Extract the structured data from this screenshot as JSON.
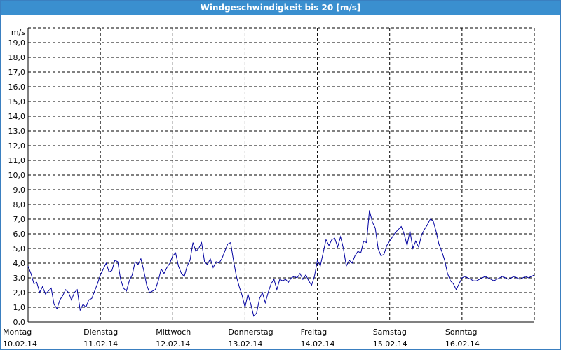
{
  "window": {
    "title": "Windgeschwindigkeit bis 20 [m/s]"
  },
  "colors": {
    "title_bar": "#3a8fcf",
    "series_line": "#0000a0",
    "grid": "#000000"
  },
  "chart_data": {
    "type": "line",
    "title": "Windgeschwindigkeit bis 20 [m/s]",
    "ylabel": "m/s",
    "xlabel": "",
    "ylim": [
      0,
      20
    ],
    "yticks": [
      "0,0",
      "1,0",
      "2,0",
      "3,0",
      "4,0",
      "5,0",
      "6,0",
      "7,0",
      "8,0",
      "9,0",
      "10,0",
      "11,0",
      "12,0",
      "13,0",
      "14,0",
      "15,0",
      "16,0",
      "17,0",
      "18,0",
      "19,0"
    ],
    "x_range_days": [
      0,
      7
    ],
    "day_ticks": [
      {
        "day": "Montag",
        "date": "10.02.14"
      },
      {
        "day": "Dienstag",
        "date": "11.02.14"
      },
      {
        "day": "Mittwoch",
        "date": "12.02.14"
      },
      {
        "day": "Donnerstag",
        "date": "13.02.14"
      },
      {
        "day": "Freitag",
        "date": "14.02.14"
      },
      {
        "day": "Samstag",
        "date": "15.02.14"
      },
      {
        "day": "Sonntag",
        "date": "16.02.14"
      }
    ],
    "grid": true,
    "series": [
      {
        "x": [
          0.0,
          0.04,
          0.08,
          0.12,
          0.16,
          0.2,
          0.24,
          0.28,
          0.32,
          0.36,
          0.4,
          0.44,
          0.48,
          0.52,
          0.56,
          0.6,
          0.64,
          0.68,
          0.72,
          0.76,
          0.8,
          0.84,
          0.88,
          0.92,
          0.96,
          1.0,
          1.04,
          1.08,
          1.12,
          1.16,
          1.2,
          1.24,
          1.28,
          1.32,
          1.36,
          1.4,
          1.44,
          1.48,
          1.52,
          1.56,
          1.6,
          1.64,
          1.68,
          1.72,
          1.76,
          1.8,
          1.84,
          1.88,
          1.92,
          1.96,
          2.0,
          2.04,
          2.08,
          2.12,
          2.16,
          2.2,
          2.24,
          2.28,
          2.32,
          2.36,
          2.4,
          2.44,
          2.48,
          2.52,
          2.56,
          2.6,
          2.64,
          2.68,
          2.72,
          2.76,
          2.8,
          2.84,
          2.88,
          2.92,
          2.96,
          3.0,
          3.04,
          3.08,
          3.12,
          3.16,
          3.2,
          3.24,
          3.28,
          3.32,
          3.36,
          3.4,
          3.44,
          3.48,
          3.52,
          3.56,
          3.6,
          3.64,
          3.68,
          3.72,
          3.76,
          3.8,
          3.84,
          3.88,
          3.92,
          3.96,
          4.0,
          4.04,
          4.08,
          4.12,
          4.16,
          4.2,
          4.24,
          4.28,
          4.32,
          4.36,
          4.4,
          4.44,
          4.48,
          4.52,
          4.56,
          4.6,
          4.64,
          4.68,
          4.72,
          4.76,
          4.8,
          4.84,
          4.88,
          4.92,
          4.96,
          5.0,
          5.04,
          5.08,
          5.12,
          5.16,
          5.2,
          5.24,
          5.28,
          5.32,
          5.36,
          5.4,
          5.44,
          5.48,
          5.52,
          5.56,
          5.6,
          5.64,
          5.68,
          5.72,
          5.76,
          5.8,
          5.84,
          5.88,
          5.92,
          5.96,
          6.0,
          6.04,
          6.08,
          6.12,
          6.16,
          6.2,
          6.24,
          6.28,
          6.32,
          6.36,
          6.4,
          6.44,
          6.48,
          6.52,
          6.56,
          6.6,
          6.64,
          6.68,
          6.72,
          6.76,
          6.8,
          6.84,
          6.88,
          6.92,
          6.96,
          7.0
        ],
        "values": [
          3.8,
          3.3,
          2.6,
          2.7,
          2.0,
          2.4,
          1.9,
          2.1,
          2.3,
          1.2,
          0.9,
          1.5,
          1.8,
          2.2,
          2.0,
          1.5,
          2.0,
          2.2,
          0.8,
          1.2,
          1.0,
          1.5,
          1.6,
          2.1,
          2.6,
          3.2,
          3.6,
          4.0,
          3.4,
          3.5,
          4.2,
          4.1,
          2.9,
          2.3,
          2.1,
          2.8,
          3.2,
          4.1,
          3.9,
          4.3,
          3.5,
          2.5,
          2.0,
          2.1,
          2.2,
          2.8,
          3.6,
          3.3,
          3.7,
          4.0,
          4.5,
          4.7,
          3.8,
          3.3,
          3.1,
          3.8,
          4.2,
          5.4,
          4.8,
          5.0,
          5.4,
          4.1,
          3.9,
          4.3,
          3.7,
          4.1,
          4.0,
          4.3,
          4.8,
          5.3,
          5.4,
          4.2,
          3.1,
          2.4,
          1.8,
          1.0,
          1.9,
          1.2,
          0.4,
          0.6,
          1.6,
          2.0,
          1.3,
          2.0,
          2.6,
          2.9,
          2.2,
          2.9,
          2.8,
          2.9,
          2.7,
          3.0,
          3.1,
          3.0,
          3.3,
          2.9,
          3.2,
          2.8,
          2.5,
          3.1,
          4.2,
          3.8,
          4.7,
          5.6,
          5.2,
          5.6,
          5.7,
          5.1,
          5.8,
          5.0,
          3.8,
          4.2,
          4.0,
          4.5,
          4.8,
          4.7,
          5.5,
          5.4,
          7.6,
          6.8,
          6.4,
          5.0,
          4.5,
          4.6,
          5.2,
          5.5,
          5.8,
          6.1,
          6.3,
          6.5,
          6.0,
          5.2,
          6.2,
          5.0,
          5.5,
          5.1,
          5.9,
          6.3,
          6.6,
          7.0,
          6.9,
          6.2,
          5.3,
          4.8,
          4.2,
          3.3,
          2.8,
          2.6,
          2.2,
          2.6,
          3.0,
          3.1,
          3.0,
          2.9,
          2.8,
          2.8,
          2.9,
          3.0,
          3.1,
          3.0,
          2.9,
          2.8,
          2.9,
          3.0,
          3.1,
          3.0,
          2.9,
          3.0,
          3.1,
          3.0,
          2.9,
          3.0,
          3.1,
          3.0,
          3.1,
          3.2
        ]
      }
    ]
  }
}
